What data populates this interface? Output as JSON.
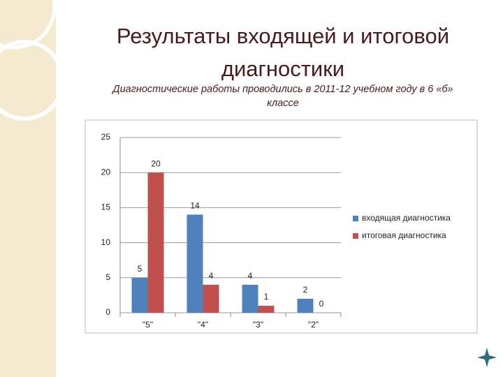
{
  "chart_data": {
    "type": "bar",
    "title": "Результаты входящей и итоговой диагностики",
    "subtitle": "Диагностические работы проводились в 2011-12 учебном году в 6 «б» классе",
    "categories": [
      "\"5\"",
      "\"4\"",
      "\"3\"",
      "\"2\""
    ],
    "series": [
      {
        "name": "входящая диагностика",
        "color": "#4f81bd",
        "values": [
          5,
          14,
          4,
          2
        ]
      },
      {
        "name": "итоговая диагностика",
        "color": "#c0504d",
        "values": [
          20,
          4,
          1,
          0
        ]
      }
    ],
    "ylim": [
      0,
      25
    ],
    "yticks": [
      0,
      5,
      10,
      15,
      20,
      25
    ],
    "grid": true,
    "legend": "right"
  }
}
